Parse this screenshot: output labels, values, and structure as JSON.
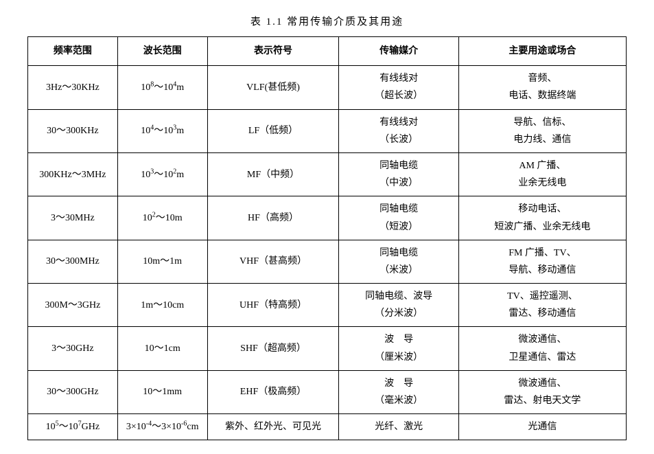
{
  "caption": "表 1.1   常用传输介质及其用途",
  "table": {
    "type": "table",
    "border_color": "#000000",
    "background_color": "#ffffff",
    "text_color": "#000000",
    "header_fontsize": 14,
    "cell_fontsize": 14,
    "header_font_weight": "bold",
    "column_widths_pct": [
      15,
      15,
      22,
      20,
      28
    ],
    "columns": [
      "频率范围",
      "波长范围",
      "表示符号",
      "传输媒介",
      "主要用途或场合"
    ],
    "rows": [
      {
        "freq": "3Hz～30KHz",
        "wavelength_html": "10<sup>8</sup>～10<sup>4</sup>m",
        "symbol": "VLF(甚低频)",
        "medium": "有线线对\n（超长波）",
        "usage": "音频、\n电话、数据终端"
      },
      {
        "freq": "30～300KHz",
        "wavelength_html": "10<sup>4</sup>～10<sup>3</sup>m",
        "symbol": "LF（低频）",
        "medium": "有线线对\n（长波）",
        "usage": "导航、信标、\n电力线、通信"
      },
      {
        "freq": "300KHz～3MHz",
        "wavelength_html": "10<sup>3</sup>～10<sup>2</sup>m",
        "symbol": "MF（中频）",
        "medium": "同轴电缆\n（中波）",
        "usage": "AM 广播、\n业余无线电"
      },
      {
        "freq": "3～30MHz",
        "wavelength_html": "10<sup>2</sup>～10m",
        "symbol": "HF（高频）",
        "medium": "同轴电缆\n（短波）",
        "usage": "移动电话、\n短波广播、业余无线电"
      },
      {
        "freq": "30～300MHz",
        "wavelength_html": "10m～1m",
        "symbol": "VHF（甚高频）",
        "medium": "同轴电缆\n（米波）",
        "usage": "FM 广播、TV、\n导航、移动通信"
      },
      {
        "freq": "300M～3GHz",
        "wavelength_html": "1m～10cm",
        "symbol": "UHF（特高频）",
        "medium": "同轴电缆、波导\n（分米波）",
        "usage": "TV、遥控遥测、\n雷达、移动通信"
      },
      {
        "freq": "3～30GHz",
        "wavelength_html": "10～1cm",
        "symbol": "SHF（超高频）",
        "medium": "波　导\n（厘米波）",
        "usage": "微波通信、\n卫星通信、雷达"
      },
      {
        "freq": "30～300GHz",
        "wavelength_html": "10～1mm",
        "symbol": "EHF（极高频）",
        "medium": "波　导\n（毫米波）",
        "usage": "微波通信、\n雷达、射电天文学"
      },
      {
        "freq_html": "10<sup>5</sup>～10<sup>7</sup>GHz",
        "wavelength_html": "3×10<sup>-4</sup>～3×10<sup>-6</sup>cm",
        "symbol": "紫外、红外光、可见光",
        "medium": "光纤、激光",
        "usage": "光通信"
      }
    ]
  }
}
